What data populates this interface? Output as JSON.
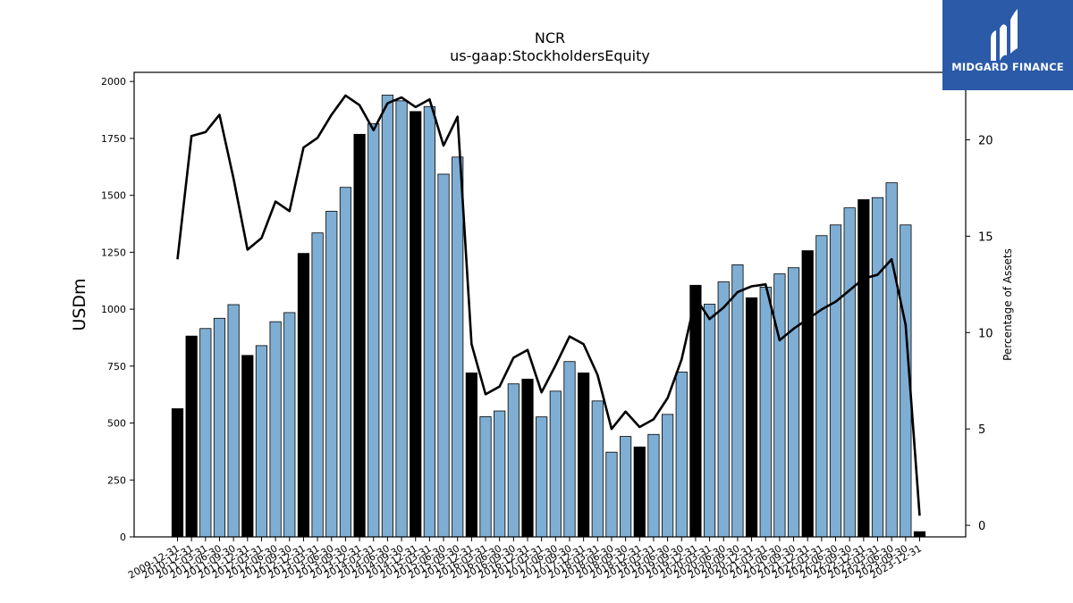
{
  "title_line1": "NCR",
  "title_line2": "us-gaap:StockholdersEquity",
  "brand": {
    "name": "MIDGARD FINANCE",
    "color": "#2a5aa8"
  },
  "chart_data": {
    "type": "bar",
    "ylabel": "USDm",
    "y2label": "Percentage of Assets",
    "ylim": [
      0,
      2040
    ],
    "y2lim": [
      -0.6,
      23.5
    ],
    "yticks": [
      0,
      250,
      500,
      750,
      1000,
      1250,
      1500,
      1750,
      2000
    ],
    "y2ticks": [
      0,
      5,
      10,
      15,
      20
    ],
    "colors": {
      "annual": "#000000",
      "quarterly": "#7eaed3",
      "line": "#000000"
    },
    "categories": [
      "2009-12-31",
      "2010-12-31",
      "2011-03-31",
      "2011-06-30",
      "2011-09-30",
      "2011-12-31",
      "2012-03-31",
      "2012-06-30",
      "2012-09-30",
      "2012-12-31",
      "2013-03-31",
      "2013-06-30",
      "2013-09-30",
      "2013-12-31",
      "2014-03-31",
      "2014-06-30",
      "2014-09-30",
      "2014-12-31",
      "2015-03-31",
      "2015-06-30",
      "2015-09-30",
      "2015-12-31",
      "2016-03-31",
      "2016-06-30",
      "2016-09-30",
      "2016-12-31",
      "2017-03-31",
      "2017-06-30",
      "2017-09-30",
      "2017-12-31",
      "2018-03-31",
      "2018-06-30",
      "2018-09-30",
      "2018-12-31",
      "2019-03-31",
      "2019-06-30",
      "2019-09-30",
      "2019-12-31",
      "2020-03-31",
      "2020-06-30",
      "2020-09-30",
      "2020-12-31",
      "2021-03-31",
      "2021-06-30",
      "2021-09-30",
      "2021-12-31",
      "2022-03-31",
      "2022-06-30",
      "2022-09-30",
      "2022-12-31",
      "2023-03-31",
      "2023-06-30",
      "2023-09-30",
      "2023-12-31"
    ],
    "xticklabels": [
      "2009-12-31",
      "2010-12-31",
      "2011-03-31",
      "2011-06-30",
      "2011-09-30",
      "2011-12-31",
      "2012-03-31",
      "2012-06-30",
      "2012-09-30",
      "2012-12-31",
      "2013-03-31",
      "2013-06-30",
      "2013-09-30",
      "2013-12-31",
      "2014-03-31",
      "2014-06-30",
      "2014-09-30",
      "2014-12-31",
      "2015-03-31",
      "2015-06-30",
      "2015-09-30",
      "2015-12-31",
      "2016-03-31",
      "2016-06-30",
      "2016-09-30",
      "2016-12-31",
      "2017-03-31",
      "2017-06-30",
      "2017-09-30",
      "2017-12-31",
      "2018-03-31",
      "2018-06-30",
      "2018-09-30",
      "2018-12-31",
      "2019-03-31",
      "2019-06-30",
      "2019-09-30",
      "2019-12-31",
      "2020-03-31",
      "2020-06-30",
      "2020-09-30",
      "2020-12-31",
      "2021-03-31",
      "2021-06-30",
      "2021-09-30",
      "2021-12-31",
      "2022-03-31",
      "2022-06-30",
      "2022-09-30",
      "2022-12-31",
      "2023-03-31",
      "2023-06-30",
      "2023-09-30",
      "2023-12-31"
    ],
    "annual": [
      true,
      true,
      false,
      false,
      false,
      true,
      false,
      false,
      false,
      true,
      false,
      false,
      false,
      true,
      false,
      false,
      false,
      true,
      false,
      false,
      false,
      true,
      false,
      false,
      false,
      true,
      false,
      false,
      false,
      true,
      false,
      false,
      false,
      true,
      false,
      false,
      false,
      true,
      false,
      false,
      false,
      true,
      false,
      false,
      false,
      true,
      false,
      false,
      false,
      true,
      false,
      false,
      false,
      true
    ],
    "values": [
      563,
      882,
      915,
      960,
      1020,
      797,
      840,
      945,
      985,
      1245,
      1335,
      1430,
      1535,
      1768,
      1815,
      1940,
      1915,
      1868,
      1890,
      1593,
      1668,
      720,
      528,
      553,
      672,
      693,
      527,
      640,
      770,
      720,
      597,
      372,
      441,
      395,
      450,
      538,
      724,
      1105,
      1022,
      1120,
      1195,
      1050,
      1097,
      1155,
      1182,
      1257,
      1323,
      1370,
      1445,
      1481,
      1490,
      1555,
      1370,
      23
    ],
    "pct_of_assets": [
      13.8,
      20.2,
      20.4,
      21.3,
      18.0,
      14.3,
      14.9,
      16.8,
      16.3,
      19.6,
      20.1,
      21.3,
      22.3,
      21.8,
      20.5,
      21.9,
      22.2,
      21.7,
      22.1,
      19.7,
      21.2,
      9.4,
      6.8,
      7.2,
      8.7,
      9.1,
      6.9,
      8.3,
      9.8,
      9.4,
      7.8,
      5.0,
      5.9,
      5.1,
      5.5,
      6.6,
      8.6,
      11.8,
      10.7,
      11.3,
      12.1,
      12.4,
      12.5,
      9.6,
      10.2,
      10.7,
      11.2,
      11.6,
      12.2,
      12.8,
      13.0,
      13.8,
      10.4,
      0.5
    ]
  }
}
